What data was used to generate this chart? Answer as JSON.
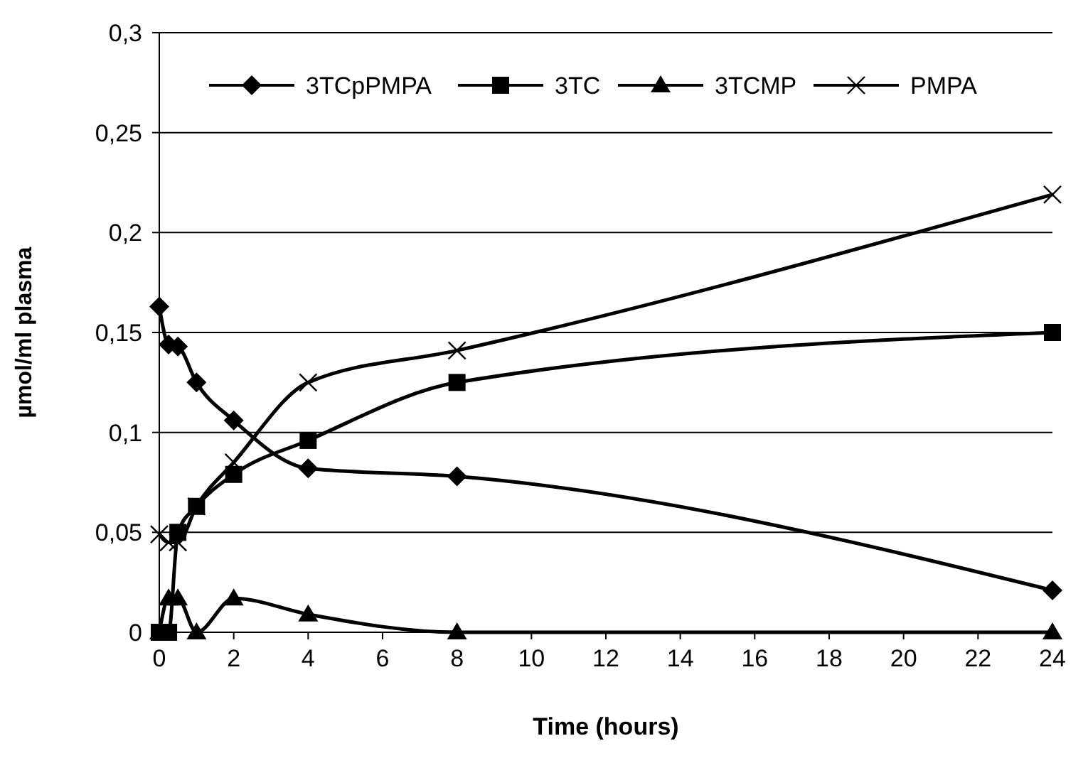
{
  "chart_data": {
    "type": "line",
    "xlabel": "Time (hours)",
    "ylabel": "µmol/ml plasma",
    "xlim": [
      0,
      24
    ],
    "xticks": [
      0,
      2,
      4,
      6,
      8,
      10,
      12,
      14,
      16,
      18,
      20,
      22,
      24
    ],
    "ylim": [
      0,
      0.3
    ],
    "yticks": [
      0,
      {
        "value": 0.05,
        "label": "0,05"
      },
      {
        "value": 0.1,
        "label": "0,1"
      },
      {
        "value": 0.15,
        "label": "0,15"
      },
      {
        "value": 0.2,
        "label": "0,2"
      },
      {
        "value": 0.25,
        "label": "0,25"
      },
      {
        "value": 0.3,
        "label": "0,3"
      }
    ],
    "grid": "y",
    "legend": "top",
    "x": [
      0,
      0.25,
      0.5,
      1,
      2,
      4,
      8,
      24
    ],
    "series": [
      {
        "name": "3TCpPMPA",
        "color": "#000000",
        "marker": "diamond",
        "values": [
          0.163,
          0.144,
          0.143,
          0.125,
          0.106,
          0.082,
          0.078,
          0.021
        ]
      },
      {
        "name": "3TC",
        "color": "#000000",
        "marker": "square",
        "values": [
          0,
          0,
          0.05,
          0.063,
          0.079,
          0.096,
          0.125,
          0.15
        ]
      },
      {
        "name": "3TCMP",
        "color": "#000000",
        "marker": "triangle",
        "values": [
          0,
          0.017,
          0.017,
          0,
          0.017,
          0.009,
          0,
          0
        ]
      },
      {
        "name": "PMPA",
        "color": "#000000",
        "marker": "cross",
        "values": [
          0.049,
          0.045,
          0.045,
          0.063,
          0.085,
          0.125,
          0.141,
          0.219
        ]
      }
    ]
  }
}
